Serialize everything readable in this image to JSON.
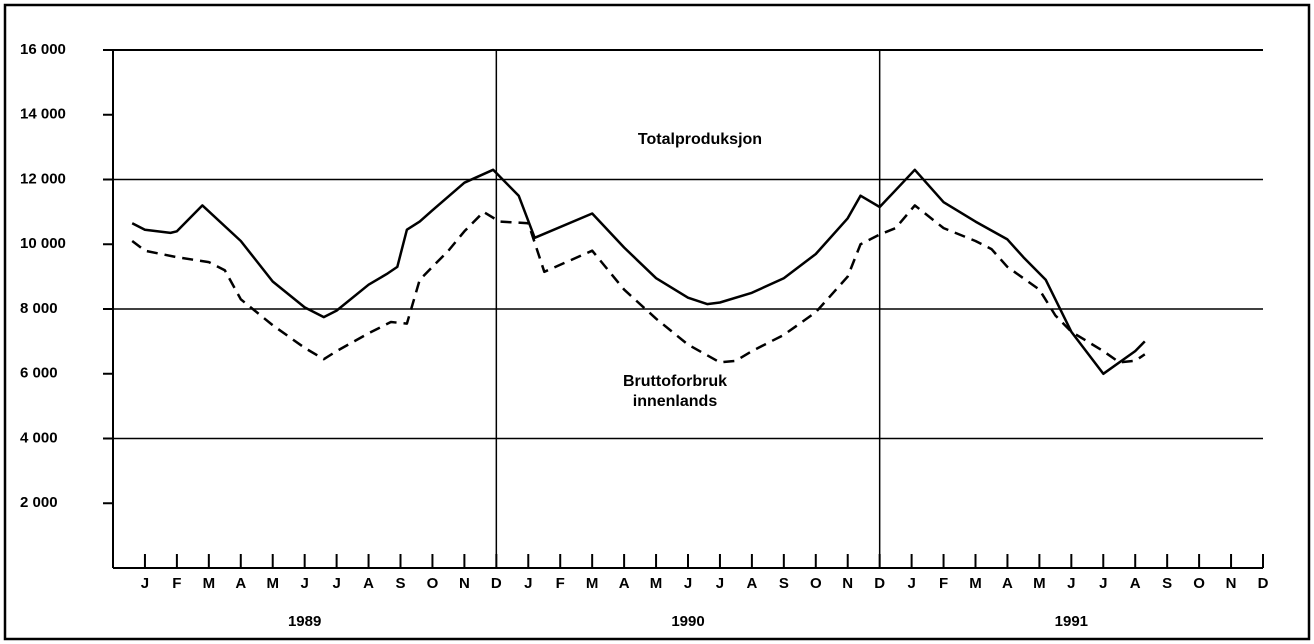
{
  "chart_data": {
    "type": "line",
    "xlim": [
      0,
      36
    ],
    "ylim": [
      0,
      16000
    ],
    "yticks": [
      {
        "value": 2000,
        "label": "2 000"
      },
      {
        "value": 4000,
        "label": "4 000"
      },
      {
        "value": 6000,
        "label": "6 000"
      },
      {
        "value": 8000,
        "label": "8 000"
      },
      {
        "value": 10000,
        "label": "10 000"
      },
      {
        "value": 12000,
        "label": "12 000"
      },
      {
        "value": 14000,
        "label": "14 000"
      },
      {
        "value": 16000,
        "label": "16 000"
      }
    ],
    "xticks": [
      {
        "value": 1,
        "label": "J"
      },
      {
        "value": 2,
        "label": "F"
      },
      {
        "value": 3,
        "label": "M"
      },
      {
        "value": 4,
        "label": "A"
      },
      {
        "value": 5,
        "label": "M"
      },
      {
        "value": 6,
        "label": "J"
      },
      {
        "value": 7,
        "label": "J"
      },
      {
        "value": 8,
        "label": "A"
      },
      {
        "value": 9,
        "label": "S"
      },
      {
        "value": 10,
        "label": "O"
      },
      {
        "value": 11,
        "label": "N"
      },
      {
        "value": 12,
        "label": "D"
      },
      {
        "value": 13,
        "label": "J"
      },
      {
        "value": 14,
        "label": "F"
      },
      {
        "value": 15,
        "label": "M"
      },
      {
        "value": 16,
        "label": "A"
      },
      {
        "value": 17,
        "label": "M"
      },
      {
        "value": 18,
        "label": "J"
      },
      {
        "value": 19,
        "label": "J"
      },
      {
        "value": 20,
        "label": "A"
      },
      {
        "value": 21,
        "label": "S"
      },
      {
        "value": 22,
        "label": "O"
      },
      {
        "value": 23,
        "label": "N"
      },
      {
        "value": 24,
        "label": "D"
      },
      {
        "value": 25,
        "label": "J"
      },
      {
        "value": 26,
        "label": "F"
      },
      {
        "value": 27,
        "label": "M"
      },
      {
        "value": 28,
        "label": "A"
      },
      {
        "value": 29,
        "label": "M"
      },
      {
        "value": 30,
        "label": "J"
      },
      {
        "value": 31,
        "label": "J"
      },
      {
        "value": 32,
        "label": "A"
      },
      {
        "value": 33,
        "label": "S"
      },
      {
        "value": 34,
        "label": "O"
      },
      {
        "value": 35,
        "label": "N"
      },
      {
        "value": 36,
        "label": "D"
      }
    ],
    "year_labels": [
      "1989",
      "1990",
      "1991"
    ],
    "series": [
      {
        "name": "Totalproduksjon",
        "color": "#000000",
        "dashed": false,
        "x": [
          0.6,
          1,
          1.8,
          2,
          2.8,
          4,
          5,
          6,
          6.6,
          7,
          8,
          8.6,
          8.9,
          9.2,
          9.6,
          10,
          11,
          11.9,
          12.7,
          13.2,
          15,
          16,
          17,
          18,
          18.6,
          19,
          20,
          21,
          22,
          23,
          23.4,
          24,
          25.1,
          26,
          27,
          28,
          28.5,
          29.2,
          30,
          31,
          32,
          32.3
        ],
        "values": [
          10650,
          10450,
          10350,
          10400,
          11200,
          10100,
          8850,
          8050,
          7750,
          7950,
          8750,
          9100,
          9300,
          10450,
          10700,
          11050,
          11900,
          12300,
          11500,
          10200,
          10950,
          9900,
          8950,
          8350,
          8150,
          8200,
          8500,
          8950,
          9700,
          10800,
          11500,
          11150,
          12300,
          11300,
          10700,
          10150,
          9600,
          8900,
          7300,
          6000,
          6700,
          7000
        ]
      },
      {
        "name": "Bruttoforbruk innenlands",
        "color": "#000000",
        "dashed": true,
        "x": [
          0.6,
          1,
          2,
          3,
          3.5,
          4,
          5,
          6,
          6.6,
          7,
          8,
          8.7,
          9.2,
          9.6,
          10,
          10.5,
          11,
          11.6,
          12.1,
          13,
          13.5,
          15,
          16,
          17,
          18,
          19,
          19.5,
          20,
          21,
          22,
          23,
          23.4,
          24,
          24.5,
          25.1,
          26,
          27,
          27.5,
          28,
          29,
          29.5,
          30,
          31,
          31.5,
          32,
          32.3
        ],
        "values": [
          10100,
          9800,
          9600,
          9450,
          9200,
          8300,
          7500,
          6800,
          6450,
          6700,
          7250,
          7600,
          7550,
          8900,
          9300,
          9800,
          10400,
          11000,
          10700,
          10650,
          9150,
          9800,
          8600,
          7700,
          6900,
          6350,
          6400,
          6700,
          7200,
          7900,
          9000,
          10000,
          10300,
          10500,
          11200,
          10500,
          10100,
          9850,
          9300,
          8600,
          7800,
          7300,
          6700,
          6350,
          6400,
          6600
        ]
      }
    ]
  }
}
